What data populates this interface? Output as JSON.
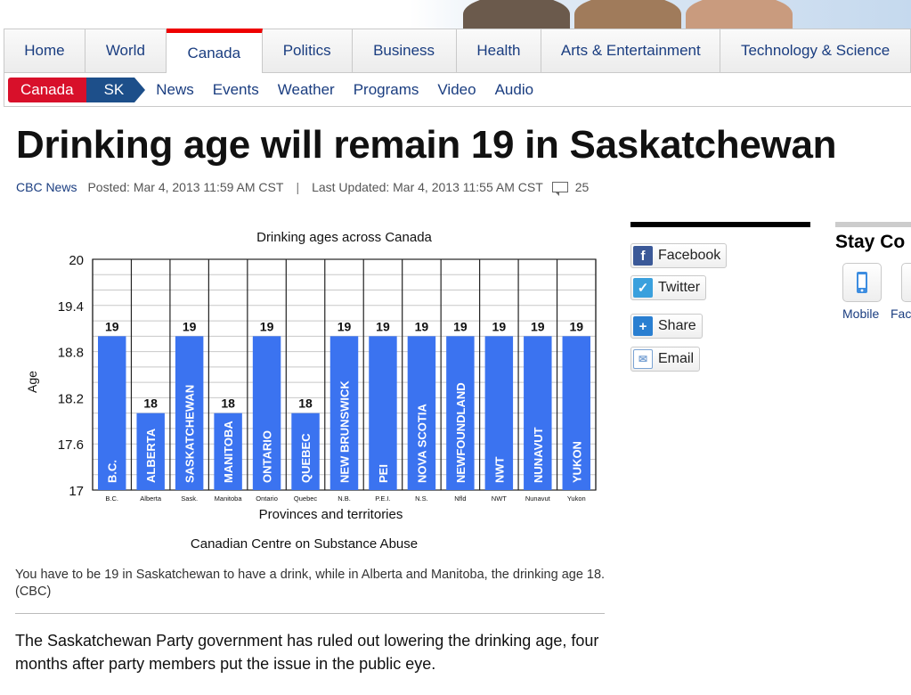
{
  "nav": {
    "tabs": [
      "Home",
      "World",
      "Canada",
      "Politics",
      "Business",
      "Health",
      "Arts & Entertainment",
      "Technology & Science"
    ],
    "active_tab": "Canada"
  },
  "subnav": {
    "crumb_section": "Canada",
    "crumb_region": "SK",
    "links": [
      "News",
      "Events",
      "Weather",
      "Programs",
      "Video",
      "Audio"
    ]
  },
  "article": {
    "headline": "Drinking age will remain 19 in Saskatchewan",
    "source": "CBC News",
    "posted": "Posted: Mar 4, 2013 11:59 AM CST",
    "separator": "|",
    "updated": "Last Updated: Mar 4, 2013 11:55 AM CST",
    "comment_count": "25",
    "caption": "You have to be 19 in Saskatchewan to have a drink, while in Alberta and Manitoba, the drinking age 18. (CBC)",
    "lede": "The Saskatchewan Party government has ruled out lowering the drinking age, four months after party members put the issue in the public eye."
  },
  "share": {
    "buttons": [
      "Facebook",
      "Twitter",
      "Share",
      "Email"
    ]
  },
  "stay_connected": {
    "title": "Stay Co",
    "items": [
      "Mobile",
      "Fac"
    ]
  },
  "colors": {
    "bar": "#3b73f0",
    "accent_red": "#d8102a",
    "link_blue": "#1a3d80"
  },
  "chart_data": {
    "type": "bar",
    "title": "Drinking ages across Canada",
    "xlabel": "Provinces and territories",
    "ylabel": "Age",
    "source": "Canadian Centre on Substance Abuse",
    "ylim": [
      17,
      20
    ],
    "yticks": [
      "20",
      "19.4",
      "18.8",
      "18.2",
      "17.6",
      "17"
    ],
    "categories": [
      "B.C.",
      "Alberta",
      "Sask.",
      "Manitoba",
      "Ontario",
      "Quebec",
      "N.B.",
      "P.E.I.",
      "N.S.",
      "Nfld",
      "NWT",
      "Nunavut",
      "Yukon"
    ],
    "bar_labels": [
      "B.C.",
      "ALBERTA",
      "SASKATCHEWAN",
      "MANITOBA",
      "ONTARIO",
      "QUEBEC",
      "NEW BRUNSWICK",
      "PEI",
      "NOVA SCOTIA",
      "NEWFOUNDLAND",
      "NWT",
      "NUNAVUT",
      "YUKON"
    ],
    "values": [
      19,
      18,
      19,
      18,
      19,
      18,
      19,
      19,
      19,
      19,
      19,
      19,
      19
    ],
    "grid": true
  }
}
